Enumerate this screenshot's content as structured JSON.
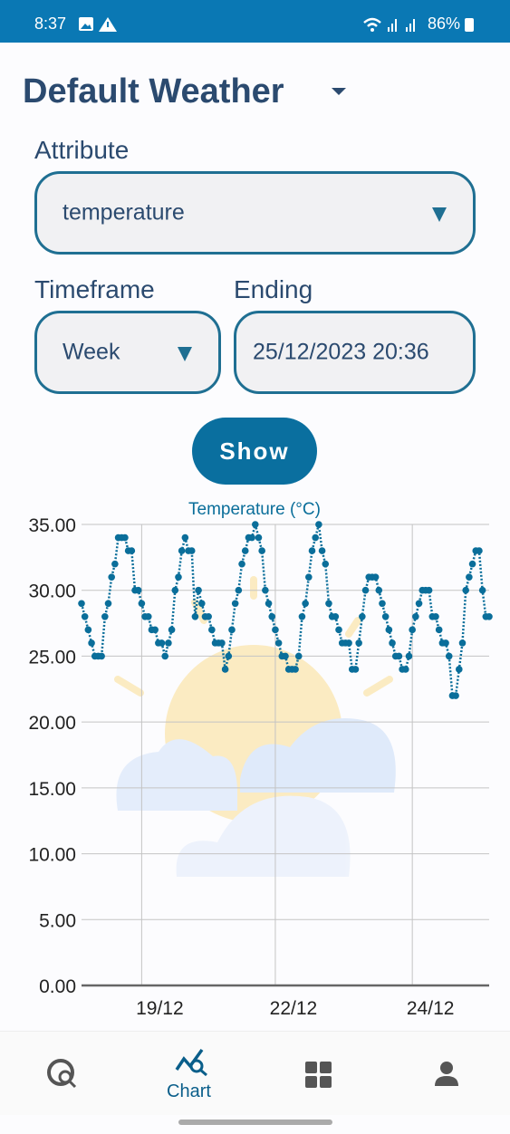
{
  "status_bar": {
    "time": "8:37",
    "battery": "86%"
  },
  "header": {
    "title": "Default Weather"
  },
  "form": {
    "attribute_label": "Attribute",
    "attribute_value": "temperature",
    "timeframe_label": "Timeframe",
    "timeframe_value": "Week",
    "ending_label": "Ending",
    "ending_value": "25/12/2023 20:36",
    "button": "Show"
  },
  "chart_data": {
    "type": "line",
    "title": "Temperature (°C)",
    "series": [
      {
        "name": "Temperature (°C)",
        "color": "#0a6e9a",
        "values": [
          29,
          28,
          27,
          26,
          25,
          25,
          25,
          28,
          29,
          31,
          32,
          34,
          34,
          34,
          33,
          33,
          30,
          30,
          29,
          28,
          28,
          27,
          27,
          26,
          26,
          25,
          26,
          27,
          30,
          31,
          33,
          34,
          33,
          33,
          28,
          30,
          29,
          28,
          28,
          27,
          26,
          26,
          26,
          24,
          25,
          27,
          29,
          30,
          32,
          33,
          34,
          34,
          35,
          34,
          33,
          30,
          29,
          28,
          27,
          26,
          25,
          25,
          24,
          24,
          24,
          25,
          28,
          29,
          31,
          33,
          34,
          35,
          33,
          32,
          29,
          28,
          28,
          27,
          26,
          26,
          26,
          24,
          24,
          26,
          28,
          30,
          31,
          31,
          31,
          30,
          29,
          28,
          27,
          26,
          25,
          25,
          24,
          24,
          25,
          27,
          28,
          29,
          30,
          30,
          30,
          28,
          28,
          27,
          26,
          26,
          25,
          22,
          22,
          24,
          26,
          30,
          31,
          32,
          33,
          33,
          30,
          28,
          28
        ]
      }
    ],
    "xlim": [
      0,
      122
    ],
    "xticks": [
      {
        "value": 18,
        "label": "19/12"
      },
      {
        "value": 58,
        "label": "22/12"
      },
      {
        "value": 99,
        "label": "24/12"
      }
    ],
    "ylim": [
      0,
      35
    ],
    "yticks": [
      {
        "value": 0,
        "label": "0.00"
      },
      {
        "value": 5,
        "label": "5.00"
      },
      {
        "value": 10,
        "label": "10.00"
      },
      {
        "value": 15,
        "label": "15.00"
      },
      {
        "value": 20,
        "label": "20.00"
      },
      {
        "value": 25,
        "label": "25.00"
      },
      {
        "value": 30,
        "label": "30.00"
      },
      {
        "value": 35,
        "label": "35.00"
      }
    ],
    "grid": true
  },
  "nav": {
    "active_label": "Chart"
  }
}
